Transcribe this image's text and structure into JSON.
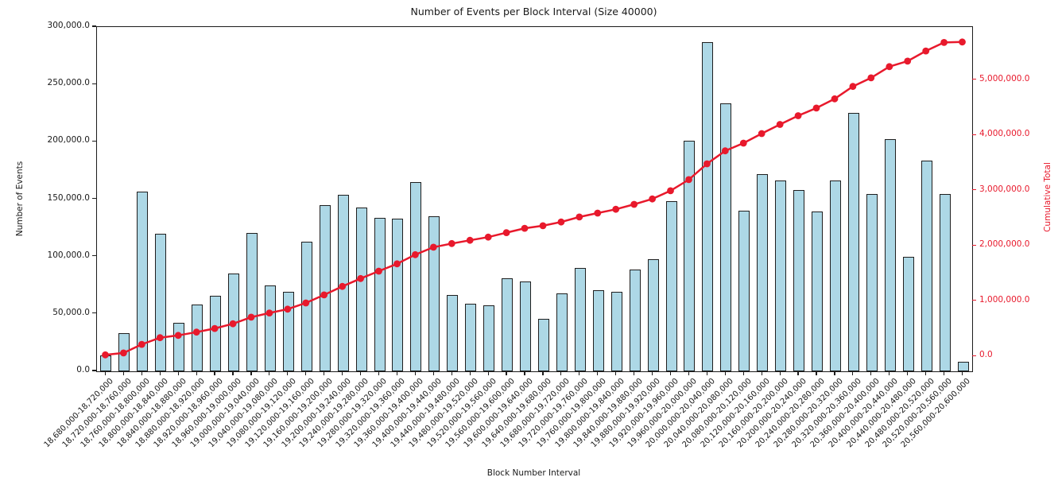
{
  "chart_data": {
    "type": "bar",
    "title": "Number of Events per Block Interval (Size 40000)",
    "xlabel": "Block Number Interval",
    "ylabel": "Number of Events",
    "ylabel_right": "Cumulative Total",
    "grid": false,
    "legend": "none",
    "colors": {
      "bar_fill": "#ADD8E6",
      "bar_edge": "#1f1f1f",
      "line": "#e8192c",
      "axis": "#1c1c1c"
    },
    "categories": [
      "18,680,000-18,720,000",
      "18,720,000-18,760,000",
      "18,760,000-18,800,000",
      "18,800,000-18,840,000",
      "18,840,000-18,880,000",
      "18,880,000-18,920,000",
      "18,920,000-18,960,000",
      "18,960,000-19,000,000",
      "19,000,000-19,040,000",
      "19,040,000-19,080,000",
      "19,080,000-19,120,000",
      "19,120,000-19,160,000",
      "19,160,000-19,200,000",
      "19,200,000-19,240,000",
      "19,240,000-19,280,000",
      "19,280,000-19,320,000",
      "19,320,000-19,360,000",
      "19,360,000-19,400,000",
      "19,400,000-19,440,000",
      "19,440,000-19,480,000",
      "19,480,000-19,520,000",
      "19,520,000-19,560,000",
      "19,560,000-19,600,000",
      "19,600,000-19,640,000",
      "19,640,000-19,680,000",
      "19,680,000-19,720,000",
      "19,720,000-19,760,000",
      "19,760,000-19,800,000",
      "19,800,000-19,840,000",
      "19,840,000-19,880,000",
      "19,880,000-19,920,000",
      "19,920,000-19,960,000",
      "19,960,000-20,000,000",
      "20,000,000-20,040,000",
      "20,040,000-20,080,000",
      "20,080,000-20,120,000",
      "20,120,000-20,160,000",
      "20,160,000-20,200,000",
      "20,200,000-20,240,000",
      "20,240,000-20,280,000",
      "20,280,000-20,320,000",
      "20,320,000-20,360,000",
      "20,360,000-20,400,000",
      "20,400,000-20,440,000",
      "20,440,000-20,480,000",
      "20,480,000-20,520,000",
      "20,520,000-20,560,000",
      "20,560,000-20,600,000"
    ],
    "values": [
      14000,
      33500,
      156500,
      120000,
      42500,
      58000,
      66000,
      85000,
      120500,
      75000,
      69500,
      113000,
      145000,
      153500,
      143000,
      133500,
      133000,
      165000,
      135000,
      66500,
      59000,
      57500,
      81000,
      78500,
      46000,
      68000,
      90000,
      71000,
      69500,
      89000,
      98000,
      148000,
      201000,
      287000,
      233500,
      140000,
      172000,
      166000,
      158000,
      139000,
      166500,
      225000,
      154500,
      202500,
      100000,
      183500,
      154500,
      8500
    ],
    "cumulative_overlay": {
      "type": "line",
      "name": "Cumulative Total",
      "derived": "running sum of values",
      "marker": "circle"
    },
    "ylim_left": [
      0,
      300000
    ],
    "ylim_right": [
      -270000,
      5960000
    ],
    "yticks_left": {
      "values": [
        0,
        50000,
        100000,
        150000,
        200000,
        250000,
        300000
      ],
      "labels": [
        "0.0",
        "50,000.0",
        "100,000.0",
        "150,000.0",
        "200,000.0",
        "250,000.0",
        "300,000.0"
      ]
    },
    "yticks_right": {
      "values": [
        0,
        1000000,
        2000000,
        3000000,
        4000000,
        5000000
      ],
      "labels": [
        "0.0",
        "1,000,000.0",
        "2,000,000.0",
        "3,000,000.0",
        "4,000,000.0",
        "5,000,000.0"
      ]
    }
  }
}
